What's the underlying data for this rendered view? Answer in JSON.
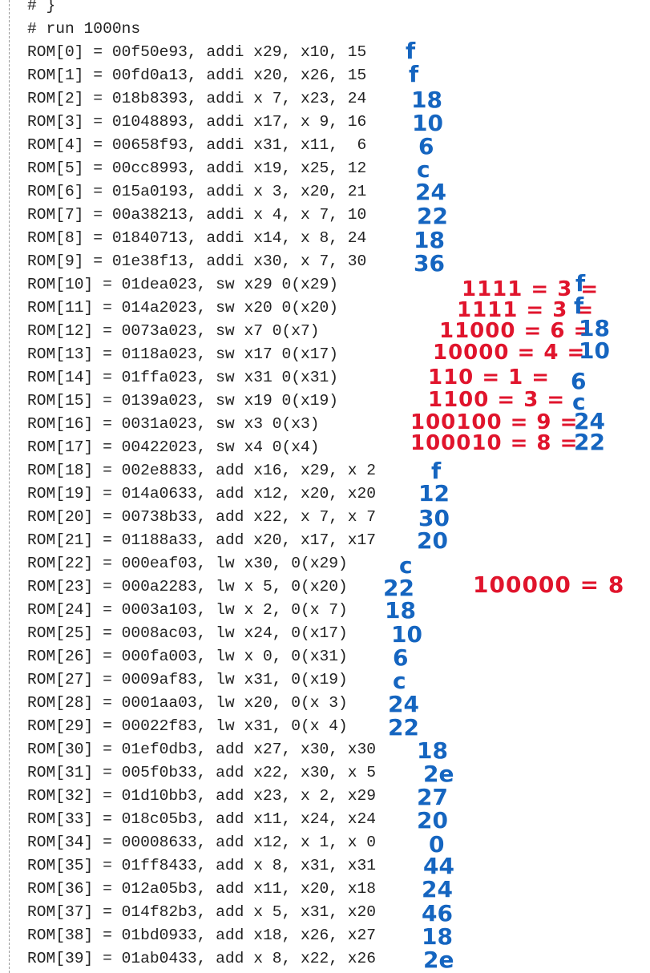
{
  "console": {
    "header_lines": [
      "# }",
      "# run 1000ns"
    ],
    "rom_lines": [
      "ROM[0] = 00f50e93, addi x29, x10, 15",
      "ROM[1] = 00fd0a13, addi x20, x26, 15",
      "ROM[2] = 018b8393, addi x 7, x23, 24",
      "ROM[3] = 01048893, addi x17, x 9, 16",
      "ROM[4] = 00658f93, addi x31, x11,  6",
      "ROM[5] = 00cc8993, addi x19, x25, 12",
      "ROM[6] = 015a0193, addi x 3, x20, 21",
      "ROM[7] = 00a38213, addi x 4, x 7, 10",
      "ROM[8] = 01840713, addi x14, x 8, 24",
      "ROM[9] = 01e38f13, addi x30, x 7, 30",
      "ROM[10] = 01dea023, sw x29 0(x29)",
      "ROM[11] = 014a2023, sw x20 0(x20)",
      "ROM[12] = 0073a023, sw x7 0(x7)",
      "ROM[13] = 0118a023, sw x17 0(x17)",
      "ROM[14] = 01ffa023, sw x31 0(x31)",
      "ROM[15] = 0139a023, sw x19 0(x19)",
      "ROM[16] = 0031a023, sw x3 0(x3)",
      "ROM[17] = 00422023, sw x4 0(x4)",
      "ROM[18] = 002e8833, add x16, x29, x 2",
      "ROM[19] = 014a0633, add x12, x20, x20",
      "ROM[20] = 00738b33, add x22, x 7, x 7",
      "ROM[21] = 01188a33, add x20, x17, x17",
      "ROM[22] = 000eaf03, lw x30, 0(x29)",
      "ROM[23] = 000a2283, lw x 5, 0(x20)",
      "ROM[24] = 0003a103, lw x 2, 0(x 7)",
      "ROM[25] = 0008ac03, lw x24, 0(x17)",
      "ROM[26] = 000fa003, lw x 0, 0(x31)",
      "ROM[27] = 0009af83, lw x31, 0(x19)",
      "ROM[28] = 0001aa03, lw x20, 0(x 3)",
      "ROM[29] = 00022f83, lw x31, 0(x 4)",
      "ROM[30] = 01ef0db3, add x27, x30, x30",
      "ROM[31] = 005f0b33, add x22, x30, x 5",
      "ROM[32] = 01d10bb3, add x23, x 2, x29",
      "ROM[33] = 018c05b3, add x11, x24, x24",
      "ROM[34] = 00008633, add x12, x 1, x 0",
      "ROM[35] = 01ff8433, add x 8, x31, x31",
      "ROM[36] = 012a05b3, add x11, x20, x18",
      "ROM[37] = 014f82b3, add x 5, x31, x20",
      "ROM[38] = 01bd0933, add x18, x26, x27",
      "ROM[39] = 01ab0433, add x 8, x22, x26"
    ]
  },
  "annotations": {
    "blue_notes": [
      "f",
      "f",
      "18",
      "10",
      "6",
      "c",
      "24",
      "22",
      "18",
      "36",
      "f",
      "12",
      "30",
      "20",
      "c",
      "22",
      "18",
      "10",
      "6",
      "c",
      "24",
      "22",
      "18",
      "2e",
      "27",
      "20",
      "0",
      "44",
      "24",
      "46",
      "18",
      "2e"
    ],
    "red_notes": [
      "1111 = 3 =",
      "1111 = 3 =",
      "11000 = 6 =",
      "10000 = 4 =",
      "110 = 1 =",
      "1100 = 3 =",
      "100100 = 9 =",
      "100010 = 8 =",
      "100000 = 8"
    ],
    "blue_results": [
      "f",
      "f",
      "18",
      "10",
      "6",
      "c",
      "24",
      "22"
    ],
    "colors": {
      "blue": "#1565c0",
      "red": "#e0142c",
      "text": "#222222",
      "gutter": "#9a9a9a"
    }
  }
}
